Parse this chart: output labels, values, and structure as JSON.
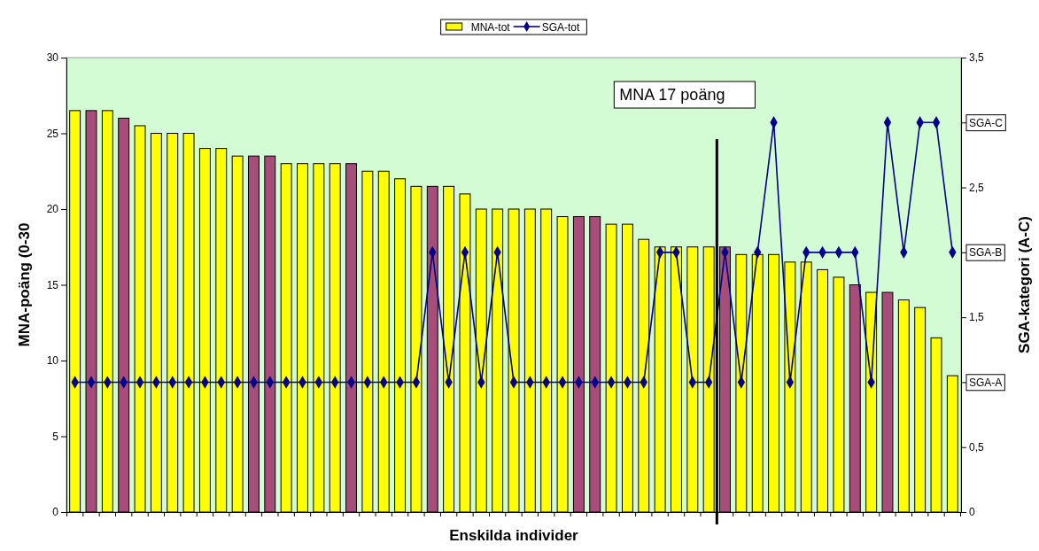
{
  "chart_data": {
    "type": "bar",
    "xlabel": "Enskilda individer",
    "ylabel": "MNA-poäng (0-30",
    "y2label": "SGA-kategori (A-C)",
    "categories": [
      null,
      null,
      null,
      null,
      null,
      null,
      null,
      null,
      null,
      null,
      null,
      null,
      null,
      null,
      null,
      null,
      null,
      null,
      null,
      null,
      null,
      null,
      null,
      null,
      null,
      null,
      null,
      null,
      null,
      null,
      null,
      null,
      null,
      null,
      null,
      null,
      null,
      null,
      null,
      null,
      null,
      null,
      null,
      null,
      null,
      null,
      null,
      null,
      null,
      null,
      null,
      null,
      null,
      null,
      null
    ],
    "series": [
      {
        "name": "MNA-tot",
        "color": "#ffff00",
        "colors": [
          "#ffff00",
          "#a64d79",
          "#ffff00",
          "#a64d79",
          "#ffff00",
          "#ffff00",
          "#ffff00",
          "#ffff00",
          "#ffff00",
          "#ffff00",
          "#ffff00",
          "#a64d79",
          "#a64d79",
          "#ffff00",
          "#ffff00",
          "#ffff00",
          "#ffff00",
          "#a64d79",
          "#ffff00",
          "#ffff00",
          "#ffff00",
          "#ffff00",
          "#a64d79",
          "#ffff00",
          "#ffff00",
          "#ffff00",
          "#ffff00",
          "#ffff00",
          "#ffff00",
          "#ffff00",
          "#ffff00",
          "#a64d79",
          "#a64d79",
          "#ffff00",
          "#ffff00",
          "#ffff00",
          "#ffff00",
          "#ffff00",
          "#ffff00",
          "#ffff00",
          "#a64d79",
          "#ffff00",
          "#ffff00",
          "#ffff00",
          "#ffff00",
          "#ffff00",
          "#ffff00",
          "#ffff00",
          "#a64d79",
          "#ffff00",
          "#a64d79",
          "#ffff00",
          "#ffff00",
          "#ffff00",
          "#ffff00"
        ],
        "values": [
          26.5,
          26.5,
          26.5,
          26,
          25.5,
          25,
          25,
          25,
          24,
          24,
          23.5,
          23.5,
          23.5,
          23,
          23,
          23,
          23,
          23,
          22.5,
          22.5,
          22,
          21.5,
          21.5,
          21.5,
          21,
          20,
          20,
          20,
          20,
          20,
          19.5,
          19.5,
          19.5,
          19,
          19,
          18,
          17.5,
          17.5,
          17.5,
          17.5,
          17.5,
          17,
          17,
          17,
          16.5,
          16.5,
          16,
          15.5,
          15,
          14.5,
          14.5,
          14,
          13.5,
          11.5,
          9
        ]
      },
      {
        "name": "SGA-tot",
        "type": "line",
        "axis": "y2",
        "color": "#00008b",
        "marker": "diamond",
        "line_style": "solid",
        "values": [
          1,
          1,
          1,
          1,
          1,
          1,
          1,
          1,
          1,
          1,
          1,
          1,
          1,
          1,
          1,
          1,
          1,
          1,
          1,
          1,
          1,
          1,
          2,
          1,
          2,
          1,
          2,
          1,
          1,
          1,
          1,
          1,
          1,
          1,
          1,
          1,
          2,
          2,
          1,
          1,
          2,
          1,
          2,
          3,
          1,
          2,
          2,
          2,
          2,
          1,
          3,
          2,
          3,
          3,
          2
        ]
      }
    ],
    "ylim": [
      0,
      30
    ],
    "yticks": [
      0,
      5,
      10,
      15,
      20,
      25,
      30
    ],
    "y2lim": [
      0,
      3.5
    ],
    "y2ticks": [
      {
        "value": 0,
        "label": "0"
      },
      {
        "value": 0.5,
        "label": "0,5"
      },
      {
        "value": 1,
        "label": "SGA-A"
      },
      {
        "value": 1.5,
        "label": "1,5"
      },
      {
        "value": 2,
        "label": "SGA-B"
      },
      {
        "value": 2.5,
        "label": "2,5"
      },
      {
        "value": 3,
        "label": "SGA-C"
      },
      {
        "value": 3.5,
        "label": "3,5"
      }
    ],
    "annotations": [
      "MNA 17 poäng"
    ],
    "grid": false,
    "legend": "top"
  }
}
